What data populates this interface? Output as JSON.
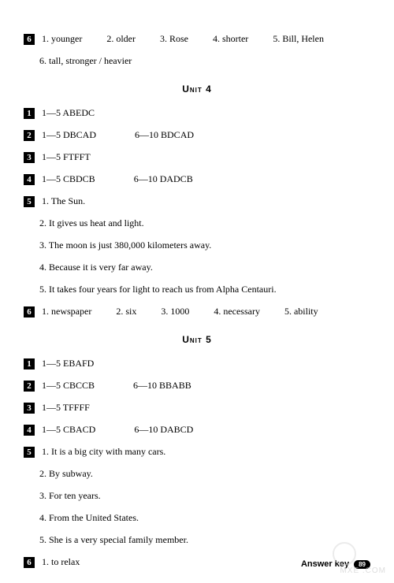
{
  "colors": {
    "text": "#000000",
    "bg": "#ffffff",
    "box_bg": "#000000",
    "box_fg": "#ffffff",
    "watermark": "#c8c8c8"
  },
  "fonts": {
    "body": "Times New Roman, serif",
    "body_size_pt": 9,
    "heading": "Arial, sans-serif"
  },
  "top_section": {
    "num": "6",
    "row1": [
      "1. younger",
      "2. older",
      "3. Rose",
      "4. shorter",
      "5. Bill, Helen"
    ],
    "row2": "6. tall, stronger / heavier"
  },
  "unit4": {
    "title": "Unit 4",
    "items": [
      {
        "num": "1",
        "cells": [
          "1—5 ABEDC"
        ]
      },
      {
        "num": "2",
        "cells": [
          "1—5 DBCAD",
          "6—10 BDCAD"
        ]
      },
      {
        "num": "3",
        "cells": [
          "1—5 FTFFT"
        ]
      },
      {
        "num": "4",
        "cells": [
          "1—5 CBDCB",
          "6—10 DADCB"
        ]
      },
      {
        "num": "5",
        "cells": [
          "1. The Sun."
        ],
        "sub": [
          "2. It gives us heat and light.",
          "3. The moon is just 380,000 kilometers away.",
          "4. Because it is very far away.",
          "5. It takes four years for light to reach us from Alpha Centauri."
        ]
      },
      {
        "num": "6",
        "cells": [
          "1. newspaper",
          "2. six",
          "3. 1000",
          "4. necessary",
          "5. ability"
        ]
      }
    ]
  },
  "unit5": {
    "title": "Unit 5",
    "items": [
      {
        "num": "1",
        "cells": [
          "1—5 EBAFD"
        ]
      },
      {
        "num": "2",
        "cells": [
          "1—5 CBCCB",
          "6—10 BBABB"
        ]
      },
      {
        "num": "3",
        "cells": [
          "1—5 TFFFF"
        ]
      },
      {
        "num": "4",
        "cells": [
          "1—5 CBACD",
          "6—10 DABCD"
        ]
      },
      {
        "num": "5",
        "cells": [
          "1. It is a big city with many cars."
        ],
        "sub": [
          "2. By subway.",
          "3. For ten years.",
          "4. From the United States.",
          "5. She is a very special family member."
        ]
      },
      {
        "num": "6",
        "cells": [
          "1. to relax"
        ]
      }
    ]
  },
  "footer": {
    "label": "Answer key",
    "page": "89"
  },
  "watermark": "MXE .COM"
}
